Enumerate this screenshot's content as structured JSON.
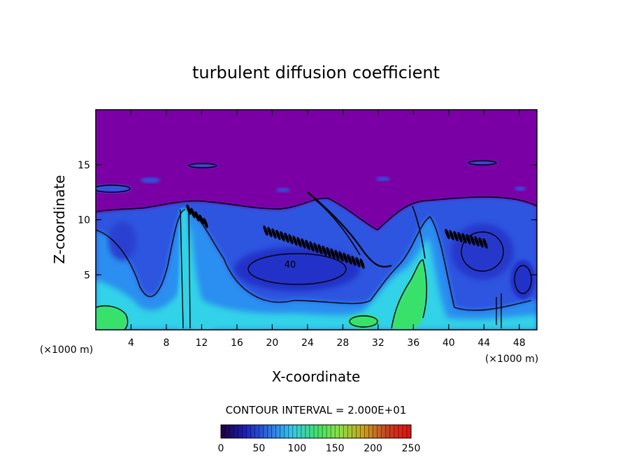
{
  "chart_data": {
    "type": "heatmap",
    "title": "turbulent diffusion coefficient",
    "xlabel": "X-coordinate",
    "ylabel": "Z-coordinate",
    "x_unit_left": "(×1000 m)",
    "x_unit_right": "(×1000 m)",
    "xlim": [
      0,
      50
    ],
    "ylim": [
      0,
      20
    ],
    "x_ticks": [
      4,
      8,
      12,
      16,
      20,
      24,
      28,
      32,
      36,
      40,
      44,
      48
    ],
    "y_ticks": [
      5,
      10,
      15
    ],
    "contour_interval_text": "CONTOUR INTERVAL = 2.000E+01",
    "contour_label": "40",
    "colorbar": {
      "min": 0,
      "max": 250,
      "ticks": [
        0,
        50,
        100,
        150,
        200,
        250
      ],
      "stops": [
        "#1a0040",
        "#1f1fb0",
        "#2a6ee8",
        "#36c8e8",
        "#40e070",
        "#8ce040",
        "#c8a020",
        "#c84020",
        "#e01010"
      ]
    },
    "palette": {
      "background": "#7a00a6",
      "low": "#2630d8",
      "mid": "#2b8ff0",
      "cyan": "#33d2e8",
      "green": "#39e26a",
      "contour": "#000000"
    }
  }
}
